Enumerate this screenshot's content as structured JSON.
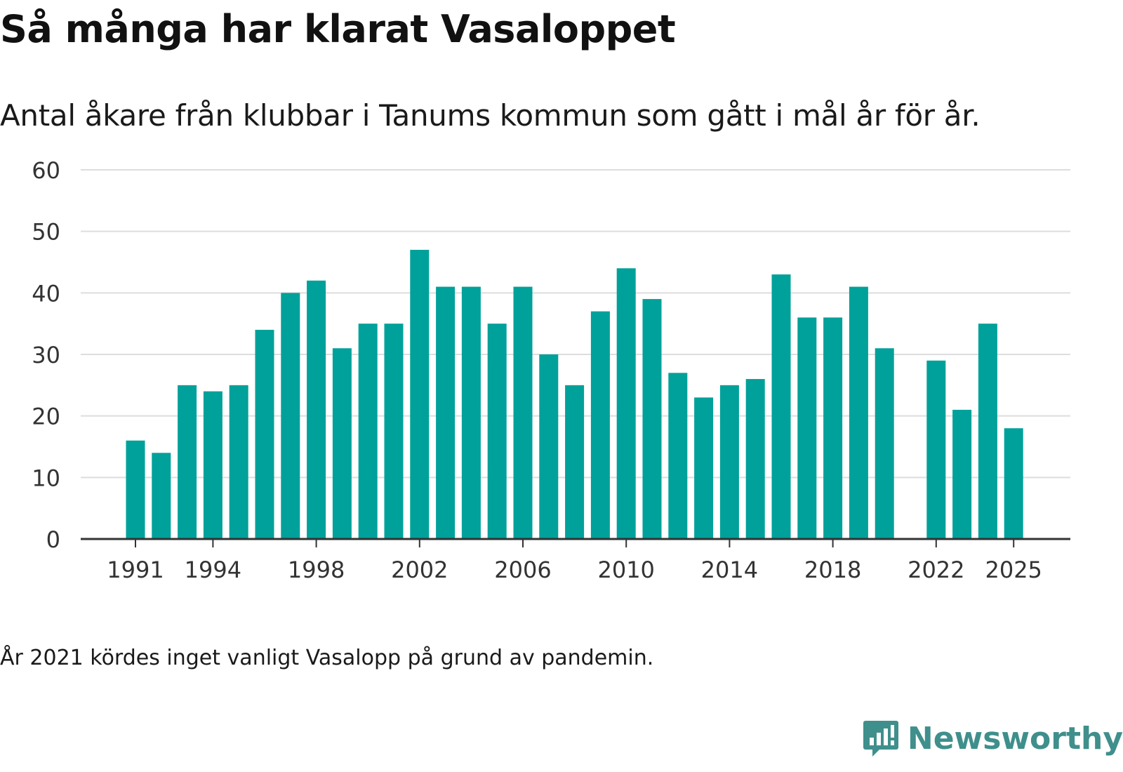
{
  "header": {
    "title": "Så många har klarat Vasaloppet",
    "subtitle": "Antal åkare från klubbar i Tanums kommun som gått i mål år för år."
  },
  "footnote": "År 2021 kördes inget vanligt Vasalopp på grund av pandemin.",
  "brand": {
    "name": "Newsworthy",
    "icon": "newsworthy-logo-icon"
  },
  "colors": {
    "bar": "#00a19a",
    "grid": "#dddddd",
    "axis": "#333333",
    "brand": "#3f8f8c"
  },
  "chart_data": {
    "type": "bar",
    "title": "Så många har klarat Vasaloppet",
    "xlabel": "",
    "ylabel": "",
    "ylim": [
      0,
      60
    ],
    "yticks": [
      0,
      10,
      20,
      30,
      40,
      50,
      60
    ],
    "xticks": [
      1991,
      1994,
      1998,
      2002,
      2006,
      2010,
      2014,
      2018,
      2022,
      2025
    ],
    "grid": true,
    "categories": [
      1991,
      1992,
      1993,
      1994,
      1995,
      1996,
      1997,
      1998,
      1999,
      2000,
      2001,
      2002,
      2003,
      2004,
      2005,
      2006,
      2007,
      2008,
      2009,
      2010,
      2011,
      2012,
      2013,
      2014,
      2015,
      2016,
      2017,
      2018,
      2019,
      2020,
      2021,
      2022,
      2023,
      2024,
      2025
    ],
    "values": [
      16,
      14,
      25,
      24,
      25,
      34,
      40,
      42,
      31,
      35,
      35,
      47,
      41,
      41,
      35,
      41,
      30,
      25,
      37,
      44,
      39,
      27,
      23,
      25,
      26,
      43,
      36,
      36,
      41,
      31,
      null,
      29,
      21,
      35,
      18
    ]
  }
}
